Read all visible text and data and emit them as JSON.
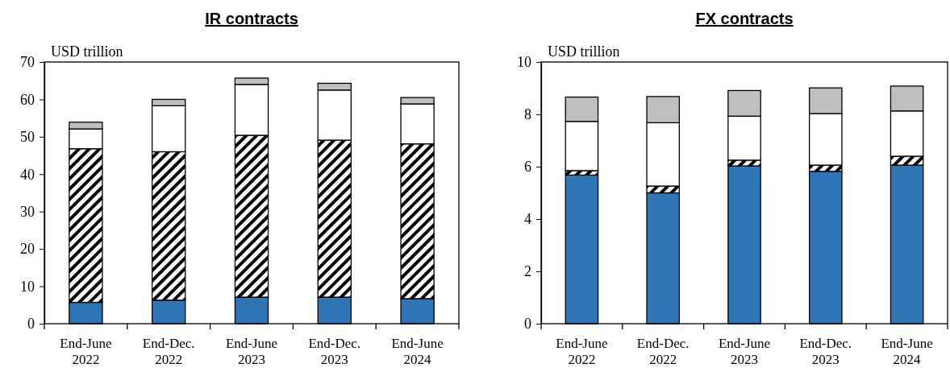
{
  "chart_data": [
    {
      "type": "bar",
      "title": "IR contracts",
      "ylabel": "USD trillion",
      "stacked": true,
      "categories": [
        "End-June 2022",
        "End-Dec. 2022",
        "End-June 2023",
        "End-Dec. 2023",
        "End-June 2024"
      ],
      "ylim": [
        0,
        70
      ],
      "yticks": [
        0,
        10,
        20,
        30,
        40,
        50,
        60,
        70
      ],
      "series": [
        {
          "color": "#2e75b6",
          "values": [
            5.7,
            6.3,
            7.1,
            7.1,
            6.7
          ]
        },
        {
          "color": "#000000",
          "values": [
            41.1,
            39.7,
            43.3,
            42.0,
            41.4
          ]
        },
        {
          "color": "#ffffff",
          "values": [
            5.3,
            12.3,
            13.6,
            13.4,
            10.7
          ]
        },
        {
          "color": "#bfbfbf",
          "values": [
            1.8,
            1.7,
            1.7,
            1.8,
            1.7
          ]
        }
      ]
    },
    {
      "type": "bar",
      "title": "FX contracts",
      "ylabel": "USD trillion",
      "stacked": true,
      "categories": [
        "End-June 2022",
        "End-Dec. 2022",
        "End-June 2023",
        "End-Dec. 2023",
        "End-June 2024"
      ],
      "ylim": [
        0,
        10
      ],
      "yticks": [
        0,
        2,
        4,
        6,
        8,
        10
      ],
      "series": [
        {
          "color": "#2e75b6",
          "values": [
            5.68,
            5.0,
            6.03,
            5.82,
            6.06
          ]
        },
        {
          "color": "#000000",
          "values": [
            0.17,
            0.26,
            0.22,
            0.24,
            0.34
          ]
        },
        {
          "color": "#ffffff",
          "values": [
            1.88,
            2.42,
            1.68,
            1.97,
            1.73
          ]
        },
        {
          "color": "#bfbfbf",
          "values": [
            0.93,
            1.0,
            0.98,
            0.98,
            0.95
          ]
        }
      ]
    }
  ]
}
